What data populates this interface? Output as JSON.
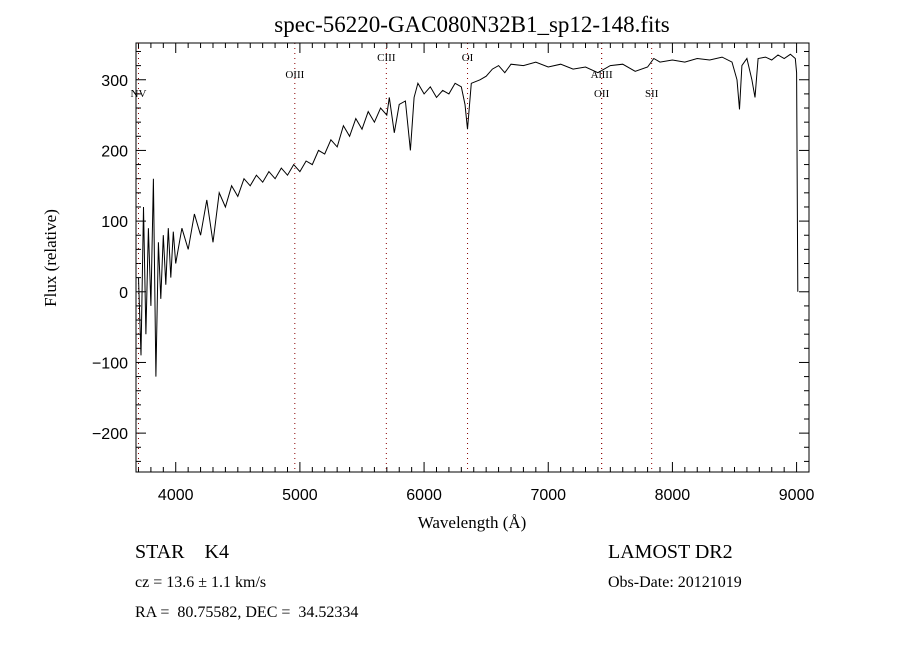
{
  "chart_data": {
    "type": "line",
    "title": "spec-56220-GAC080N32B1_sp12-148.fits",
    "xlabel": "Wavelength (Å)",
    "ylabel": "Flux (relative)",
    "xlim": [
      3680,
      9100
    ],
    "ylim": [
      -255,
      352
    ],
    "xticks": [
      4000,
      5000,
      6000,
      7000,
      8000,
      9000
    ],
    "yticks": [
      -200,
      -100,
      0,
      100,
      200,
      300
    ],
    "grid": false,
    "lines": [
      {
        "label": "NV",
        "x": 3700,
        "label_row": 2
      },
      {
        "label": "OIII",
        "x": 4959,
        "label_row": 1
      },
      {
        "label": "CIII",
        "x": 5696,
        "label_row": 0
      },
      {
        "label": "OI",
        "x": 6350,
        "label_row": 0
      },
      {
        "label": "AlIII",
        "x": 7430,
        "label_row": 1
      },
      {
        "label": "OII",
        "x": 7430,
        "label_row": 2
      },
      {
        "label": "SII",
        "x": 7833,
        "label_row": 2
      }
    ],
    "line_color": "#8b0000",
    "series": [
      {
        "name": "flux",
        "x": [
          3700,
          3720,
          3740,
          3760,
          3780,
          3800,
          3820,
          3840,
          3860,
          3880,
          3900,
          3920,
          3940,
          3960,
          3980,
          4000,
          4050,
          4100,
          4150,
          4200,
          4250,
          4300,
          4350,
          4400,
          4450,
          4500,
          4550,
          4600,
          4650,
          4700,
          4750,
          4800,
          4850,
          4900,
          4950,
          5000,
          5050,
          5100,
          5150,
          5200,
          5250,
          5300,
          5350,
          5400,
          5450,
          5500,
          5550,
          5600,
          5650,
          5700,
          5720,
          5760,
          5800,
          5850,
          5890,
          5920,
          5950,
          6000,
          6050,
          6100,
          6150,
          6200,
          6250,
          6300,
          6330,
          6350,
          6380,
          6450,
          6500,
          6550,
          6600,
          6650,
          6700,
          6800,
          6900,
          7000,
          7100,
          7200,
          7300,
          7400,
          7500,
          7600,
          7700,
          7800,
          7850,
          7900,
          8000,
          8100,
          8200,
          8300,
          8400,
          8480,
          8520,
          8540,
          8560,
          8600,
          8640,
          8665,
          8690,
          8750,
          8800,
          8850,
          8900,
          8950,
          8990,
          9000,
          9010
        ],
        "y": [
          20,
          -90,
          120,
          -60,
          90,
          -20,
          160,
          -120,
          70,
          -10,
          80,
          10,
          90,
          20,
          85,
          40,
          90,
          60,
          110,
          80,
          130,
          70,
          140,
          120,
          150,
          135,
          160,
          150,
          165,
          155,
          170,
          160,
          175,
          165,
          180,
          170,
          185,
          180,
          200,
          195,
          215,
          205,
          235,
          220,
          245,
          230,
          255,
          240,
          260,
          250,
          275,
          225,
          265,
          270,
          200,
          275,
          295,
          280,
          290,
          275,
          285,
          280,
          295,
          290,
          265,
          230,
          295,
          300,
          305,
          315,
          320,
          310,
          322,
          320,
          325,
          318,
          322,
          315,
          318,
          310,
          320,
          322,
          312,
          318,
          330,
          325,
          328,
          325,
          330,
          328,
          332,
          325,
          300,
          258,
          320,
          330,
          300,
          275,
          330,
          332,
          328,
          335,
          330,
          336,
          330,
          310,
          0
        ]
      }
    ]
  },
  "info": {
    "class": "STAR    K4",
    "survey": "LAMOST DR2",
    "cz": "cz = 13.6 ± 1.1 km/s",
    "obs_date": "Obs-Date: 20121019",
    "coords": "RA =  80.75582, DEC =  34.52334"
  }
}
